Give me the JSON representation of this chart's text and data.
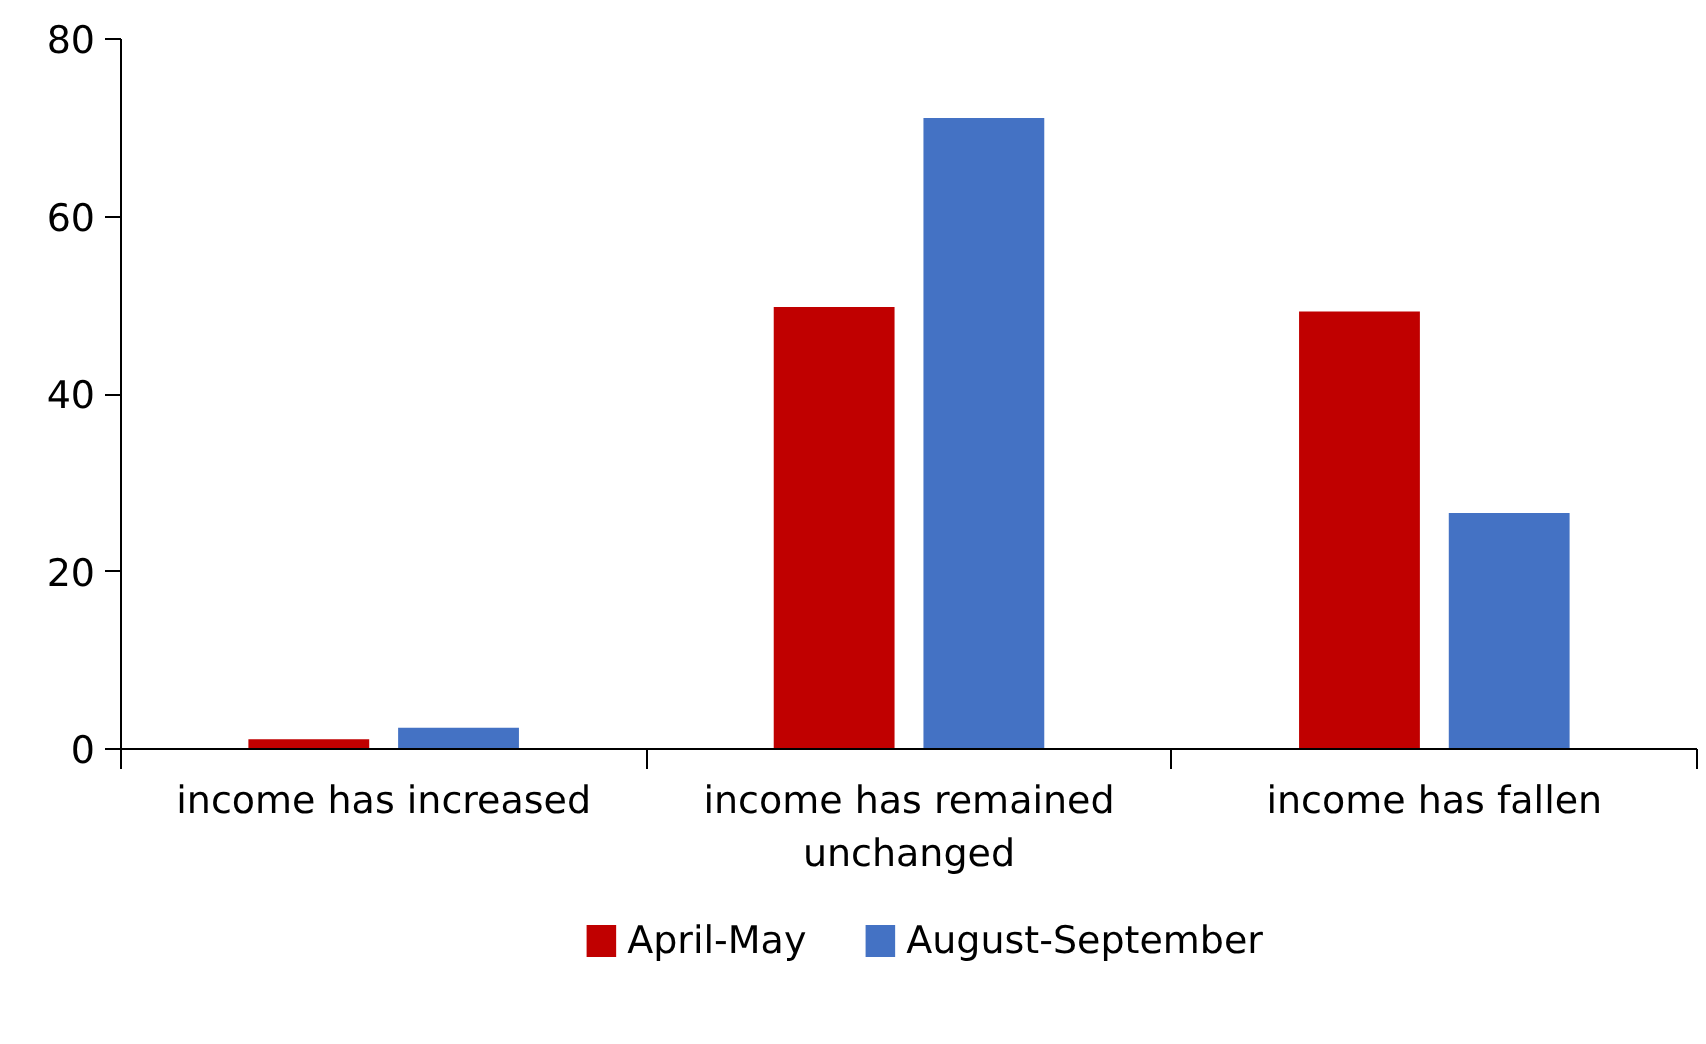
{
  "chart_data": {
    "type": "bar",
    "categories": [
      "income has increased",
      "income has remained unchanged",
      "income has fallen"
    ],
    "series": [
      {
        "name": "April-May",
        "color": "#c00000",
        "values": [
          1.1,
          49.8,
          49.3
        ]
      },
      {
        "name": "August-September",
        "color": "#4472c4",
        "values": [
          2.4,
          71.1,
          26.6
        ]
      }
    ],
    "ylim": [
      0,
      80
    ],
    "yticks": [
      0,
      20,
      40,
      60,
      80
    ],
    "grid": false,
    "legend": "bottom"
  }
}
